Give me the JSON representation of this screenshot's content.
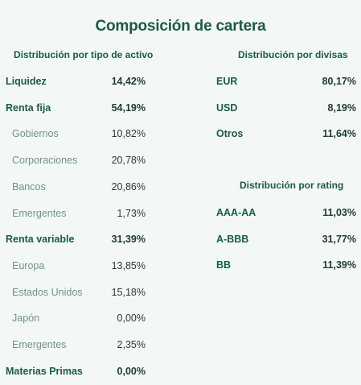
{
  "title": "Composición de cartera",
  "asset_distribution": {
    "header": "Distribución por tipo de activo",
    "rows": [
      {
        "label": "Liquidez",
        "value": "14,42%",
        "level": "main"
      },
      {
        "label": "Renta fija",
        "value": "54,19%",
        "level": "main"
      },
      {
        "label": "Gobiernos",
        "value": "10,82%",
        "level": "sub"
      },
      {
        "label": "Corporaciones",
        "value": "20,78%",
        "level": "sub"
      },
      {
        "label": "Bancos",
        "value": "20,86%",
        "level": "sub"
      },
      {
        "label": "Emergentes",
        "value": "1,73%",
        "level": "sub"
      },
      {
        "label": "Renta variable",
        "value": "31,39%",
        "level": "main"
      },
      {
        "label": "Europa",
        "value": "13,85%",
        "level": "sub"
      },
      {
        "label": "Estados Unidos",
        "value": "15,18%",
        "level": "sub"
      },
      {
        "label": "Japón",
        "value": "0,00%",
        "level": "sub"
      },
      {
        "label": "Emergentes",
        "value": "2,35%",
        "level": "sub"
      },
      {
        "label": "Materias Primas",
        "value": "0,00%",
        "level": "main"
      }
    ]
  },
  "currency_distribution": {
    "header": "Distribución por divisas",
    "rows": [
      {
        "label": "EUR",
        "value": "80,17%"
      },
      {
        "label": "USD",
        "value": "8,19%"
      },
      {
        "label": "Otros",
        "value": "11,64%"
      }
    ]
  },
  "rating_distribution": {
    "header": "Distribución por rating",
    "rows": [
      {
        "label": "AAA-AA",
        "value": "11,03%"
      },
      {
        "label": "A-BBB",
        "value": "31,77%"
      },
      {
        "label": "BB",
        "value": "11,39%"
      }
    ]
  },
  "colors": {
    "background": "#f3f7f5",
    "heading": "#1c5a45",
    "sub_label": "#6f9486",
    "value": "#1f3b33"
  }
}
